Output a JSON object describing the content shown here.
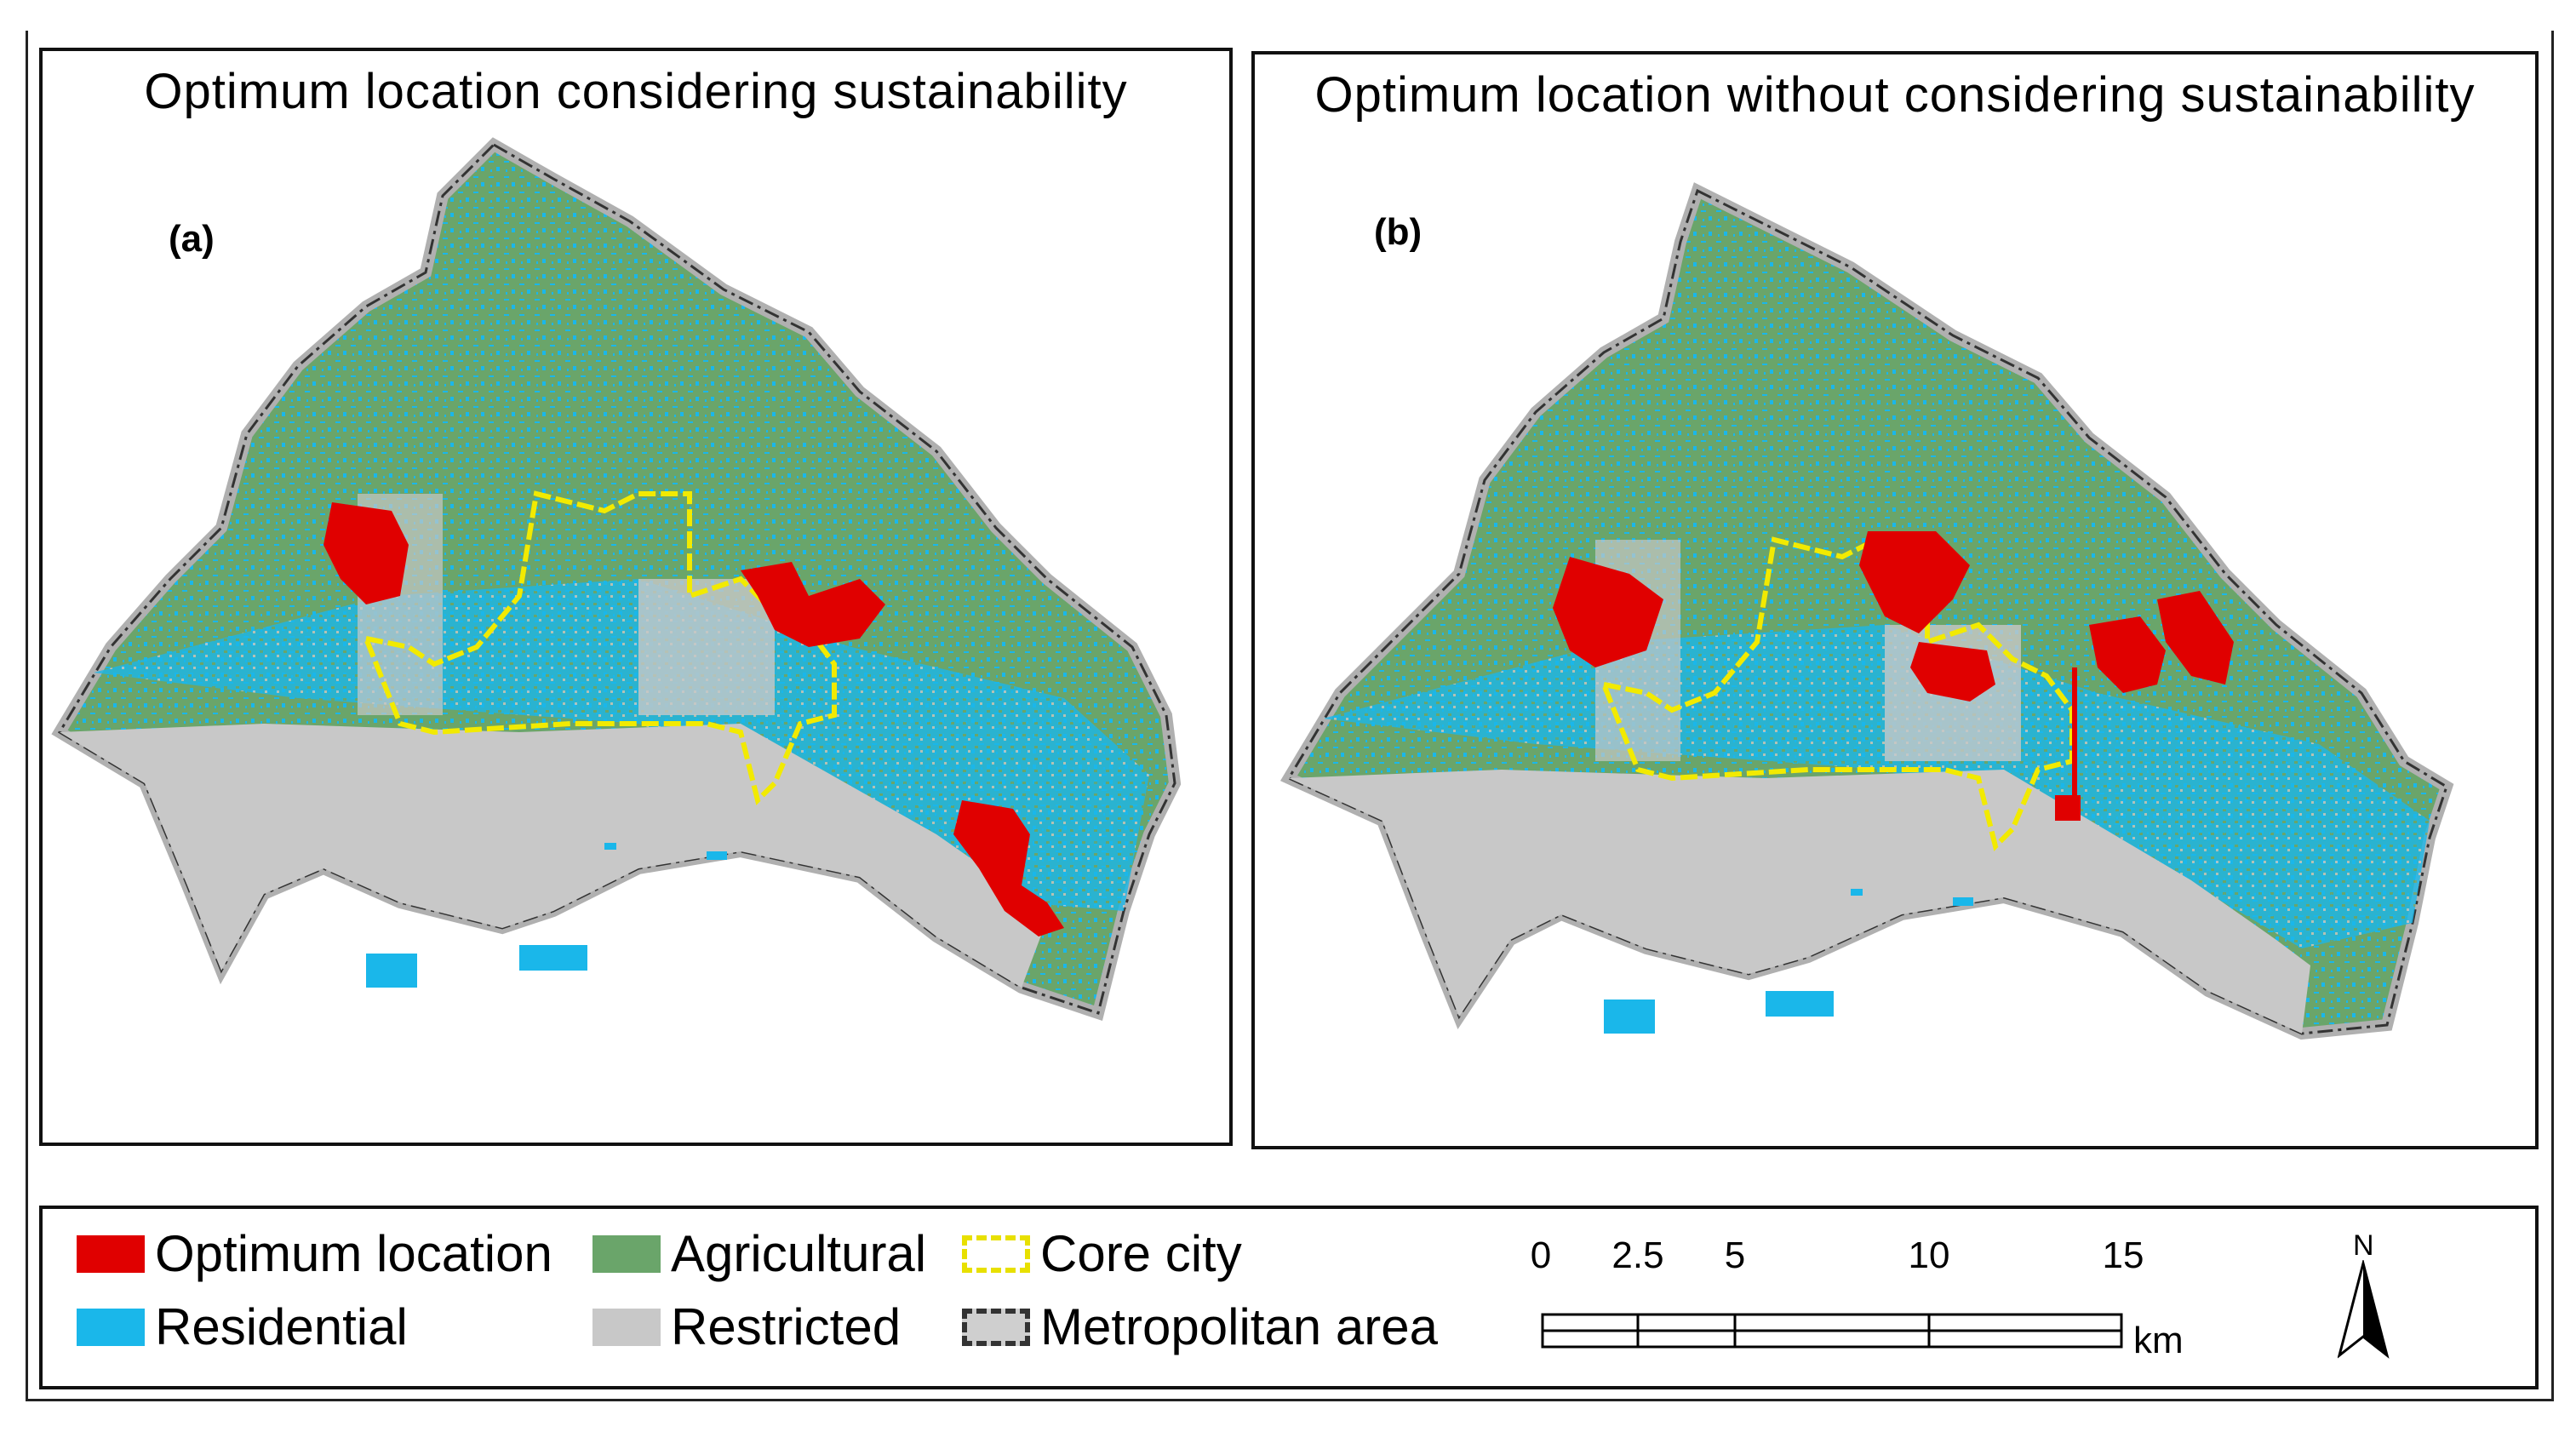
{
  "panels": {
    "a": {
      "title": "Optimum location considering sustainability",
      "label": "(a)"
    },
    "b": {
      "title": "Optimum location without considering sustainability",
      "label": "(b)"
    }
  },
  "legend": {
    "items": {
      "optimum": "Optimum location",
      "agricultural": "Agricultural",
      "core_city": "Core city",
      "residential": "Residential",
      "restricted": "Restricted",
      "metro": "Metropolitan area"
    },
    "colors": {
      "optimum": "#e00000",
      "agricultural": "#6aa56a",
      "residential": "#1ab7ea",
      "restricted": "#c8c8c8",
      "core_city": "#e8e000",
      "metro_boundary": "#333333"
    }
  },
  "scale_bar": {
    "ticks": [
      "0",
      "2.5",
      "5",
      "10",
      "15"
    ],
    "unit": "km"
  },
  "north_arrow": {
    "label": "N",
    "icon": "north-arrow-icon"
  }
}
